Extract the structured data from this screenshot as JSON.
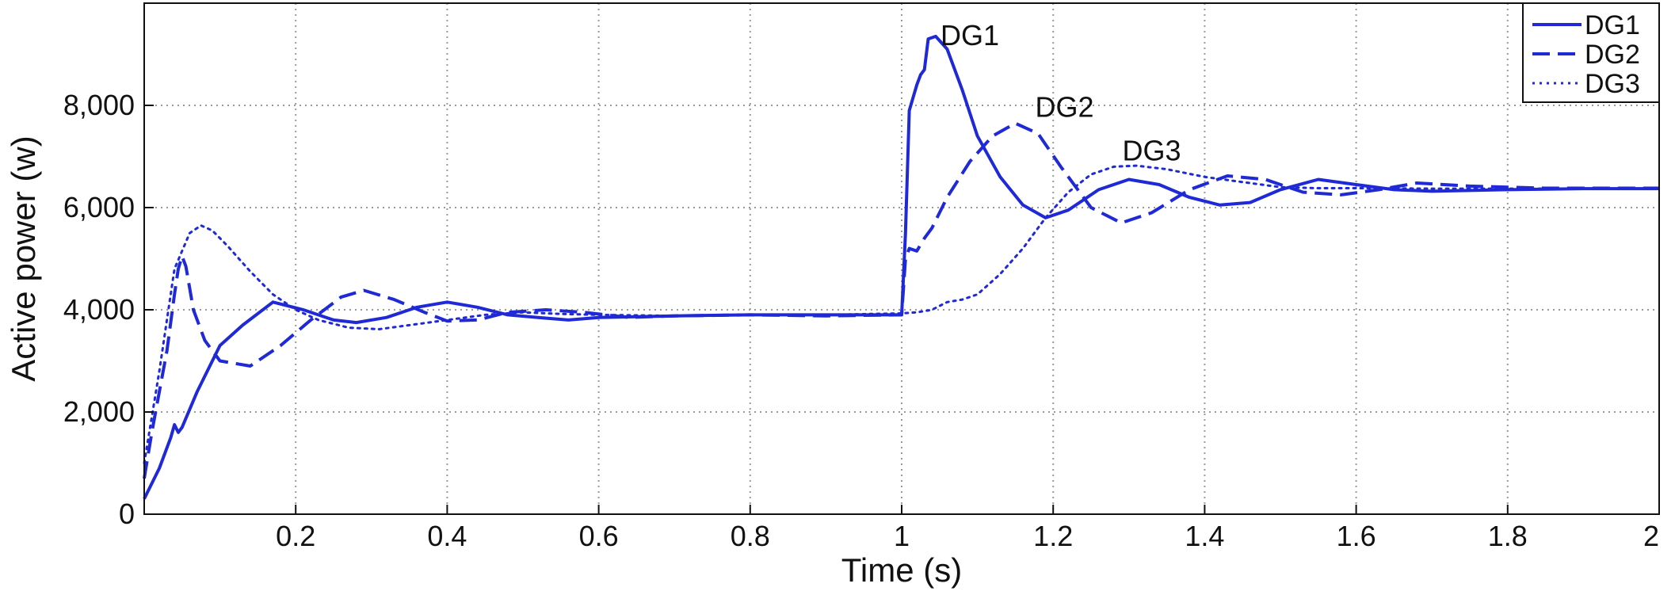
{
  "chart_data": {
    "type": "line",
    "title": "",
    "xlabel": "Time (s)",
    "ylabel": "Active power (w)",
    "xlim": [
      0,
      2
    ],
    "ylim": [
      0,
      10000
    ],
    "x_ticks": [
      {
        "value": 0.2,
        "label": "0.2"
      },
      {
        "value": 0.4,
        "label": "0.4"
      },
      {
        "value": 0.6,
        "label": "0.6"
      },
      {
        "value": 0.8,
        "label": "0.8"
      },
      {
        "value": 1.0,
        "label": "1"
      },
      {
        "value": 1.2,
        "label": "1.2"
      },
      {
        "value": 1.4,
        "label": "1.4"
      },
      {
        "value": 1.6,
        "label": "1.6"
      },
      {
        "value": 1.8,
        "label": "1.8"
      },
      {
        "value": 2.0,
        "label": "2"
      }
    ],
    "y_ticks": [
      {
        "value": 0,
        "label": "0"
      },
      {
        "value": 2000,
        "label": "2,000"
      },
      {
        "value": 4000,
        "label": "4,000"
      },
      {
        "value": 6000,
        "label": "6,000"
      },
      {
        "value": 8000,
        "label": "8,000"
      }
    ],
    "grid": true,
    "legend_position": "top-right",
    "line_color": "#1f2ad6",
    "series": [
      {
        "name": "DG1",
        "style": "solid",
        "x": [
          0.0,
          0.02,
          0.035,
          0.04,
          0.045,
          0.05,
          0.07,
          0.1,
          0.13,
          0.17,
          0.21,
          0.25,
          0.28,
          0.32,
          0.36,
          0.4,
          0.44,
          0.48,
          0.52,
          0.56,
          0.6,
          0.7,
          0.8,
          0.9,
          1.0,
          1.005,
          1.01,
          1.02,
          1.025,
          1.03,
          1.035,
          1.045,
          1.06,
          1.08,
          1.1,
          1.13,
          1.16,
          1.19,
          1.22,
          1.26,
          1.3,
          1.34,
          1.38,
          1.42,
          1.46,
          1.5,
          1.55,
          1.6,
          1.65,
          1.7,
          1.8,
          1.9,
          2.0
        ],
        "y": [
          300,
          900,
          1500,
          1750,
          1600,
          1700,
          2400,
          3300,
          3700,
          4150,
          4000,
          3800,
          3750,
          3850,
          4050,
          4150,
          4050,
          3900,
          3850,
          3800,
          3850,
          3880,
          3900,
          3900,
          3900,
          5500,
          7900,
          8400,
          8600,
          8700,
          9300,
          9350,
          9100,
          8300,
          7400,
          6600,
          6050,
          5800,
          5950,
          6350,
          6550,
          6450,
          6200,
          6050,
          6100,
          6350,
          6550,
          6450,
          6350,
          6320,
          6350,
          6370,
          6370
        ]
      },
      {
        "name": "DG2",
        "style": "dashed",
        "x": [
          0.0,
          0.01,
          0.03,
          0.04,
          0.045,
          0.05,
          0.055,
          0.065,
          0.08,
          0.1,
          0.14,
          0.18,
          0.22,
          0.26,
          0.29,
          0.33,
          0.37,
          0.4,
          0.44,
          0.48,
          0.53,
          0.58,
          0.64,
          0.7,
          0.8,
          0.9,
          1.0,
          1.005,
          1.01,
          1.02,
          1.03,
          1.04,
          1.06,
          1.09,
          1.12,
          1.15,
          1.18,
          1.21,
          1.25,
          1.29,
          1.33,
          1.38,
          1.43,
          1.48,
          1.53,
          1.58,
          1.63,
          1.68,
          1.75,
          1.85,
          2.0
        ],
        "y": [
          700,
          1600,
          3200,
          4300,
          4800,
          5050,
          4850,
          4000,
          3400,
          3000,
          2900,
          3300,
          3800,
          4250,
          4380,
          4200,
          3950,
          3780,
          3800,
          3950,
          4000,
          3950,
          3850,
          3880,
          3900,
          3880,
          3900,
          5000,
          5200,
          5150,
          5400,
          5600,
          6200,
          6900,
          7400,
          7650,
          7450,
          6800,
          6000,
          5700,
          5900,
          6350,
          6620,
          6550,
          6300,
          6250,
          6350,
          6480,
          6420,
          6380,
          6380
        ]
      },
      {
        "name": "DG3",
        "style": "dotted",
        "x": [
          0.0,
          0.02,
          0.04,
          0.06,
          0.075,
          0.09,
          0.11,
          0.14,
          0.17,
          0.2,
          0.23,
          0.27,
          0.31,
          0.35,
          0.4,
          0.45,
          0.5,
          0.55,
          0.6,
          0.7,
          0.8,
          0.9,
          1.0,
          1.02,
          1.04,
          1.06,
          1.08,
          1.1,
          1.13,
          1.16,
          1.19,
          1.22,
          1.25,
          1.28,
          1.31,
          1.35,
          1.4,
          1.45,
          1.5,
          1.55,
          1.6,
          1.7,
          1.8,
          1.9,
          2.0
        ],
        "y": [
          1000,
          2800,
          4800,
          5500,
          5650,
          5550,
          5250,
          4750,
          4300,
          4000,
          3800,
          3650,
          3620,
          3700,
          3800,
          3900,
          3950,
          3920,
          3900,
          3880,
          3900,
          3900,
          3930,
          3950,
          4000,
          4150,
          4200,
          4300,
          4700,
          5200,
          5800,
          6300,
          6650,
          6800,
          6820,
          6750,
          6600,
          6500,
          6400,
          6380,
          6380,
          6370,
          6370,
          6370,
          6370
        ]
      }
    ],
    "annotations": [
      {
        "text": "DG1",
        "x": 1.045,
        "y": 9300
      },
      {
        "text": "DG2",
        "x": 1.17,
        "y": 7900
      },
      {
        "text": "DG3",
        "x": 1.285,
        "y": 7050
      }
    ]
  }
}
